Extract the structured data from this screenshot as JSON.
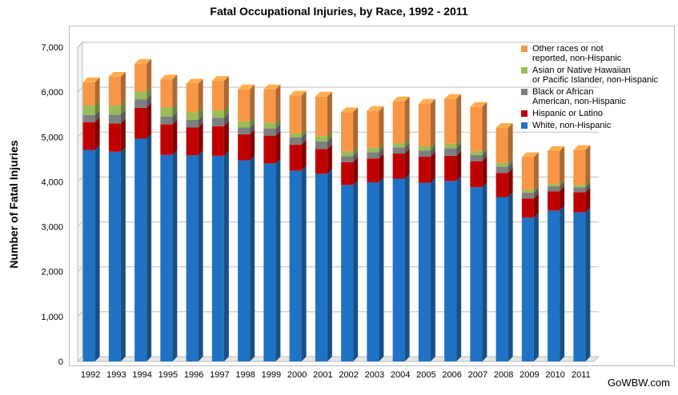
{
  "chart_data": {
    "type": "bar",
    "stacked": true,
    "title": "Fatal Occupational Injuries, by Race, 1992 - 2011",
    "ylabel": "Number of Fatal Injuries",
    "xlabel": "",
    "ylim": [
      0,
      7000
    ],
    "yticks": [
      "0",
      "1,000",
      "2,000",
      "3,000",
      "4,000",
      "5,000",
      "6,000",
      "7,000"
    ],
    "grid": true,
    "legend_position": "top-right",
    "categories": [
      "1992",
      "1993",
      "1994",
      "1995",
      "1996",
      "1997",
      "1998",
      "1999",
      "2000",
      "2001",
      "2002",
      "2003",
      "2004",
      "2005",
      "2006",
      "2007",
      "2008",
      "2009",
      "2010",
      "2011"
    ],
    "series": [
      {
        "name": "White, non-Hispanic",
        "color": "#1f72c4",
        "values": [
          4710,
          4670,
          4960,
          4600,
          4590,
          4580,
          4480,
          4410,
          4250,
          4180,
          3930,
          3990,
          4070,
          3980,
          4020,
          3880,
          3660,
          3200,
          3360,
          3320
        ]
      },
      {
        "name": "Hispanic or Latino",
        "color": "#c00000",
        "values": [
          620,
          630,
          690,
          680,
          620,
          660,
          580,
          620,
          580,
          550,
          510,
          530,
          560,
          580,
          560,
          580,
          540,
          430,
          430,
          450
        ]
      },
      {
        "name": "Black or African\nAmerican, non-Hispanic",
        "color": "#7f7f7f",
        "values": [
          160,
          200,
          190,
          170,
          170,
          190,
          150,
          160,
          160,
          170,
          130,
          140,
          140,
          140,
          170,
          140,
          140,
          130,
          110,
          110
        ]
      },
      {
        "name": "Asian or Native Hawaiian\nor Pacific Islander, non-Hispanic",
        "color": "#9bbb59",
        "values": [
          210,
          200,
          170,
          210,
          170,
          160,
          140,
          130,
          90,
          120,
          110,
          100,
          90,
          90,
          100,
          80,
          80,
          60,
          50,
          50
        ]
      },
      {
        "name": "Other races or not\nreported, non-Hispanic",
        "color": "#f79646",
        "values": [
          520,
          640,
          620,
          620,
          640,
          660,
          710,
          740,
          840,
          880,
          870,
          820,
          930,
          950,
          1000,
          990,
          780,
          730,
          740,
          780
        ]
      }
    ],
    "legend_order": [
      4,
      3,
      2,
      1,
      0
    ]
  },
  "watermark": "GoWBW.com"
}
